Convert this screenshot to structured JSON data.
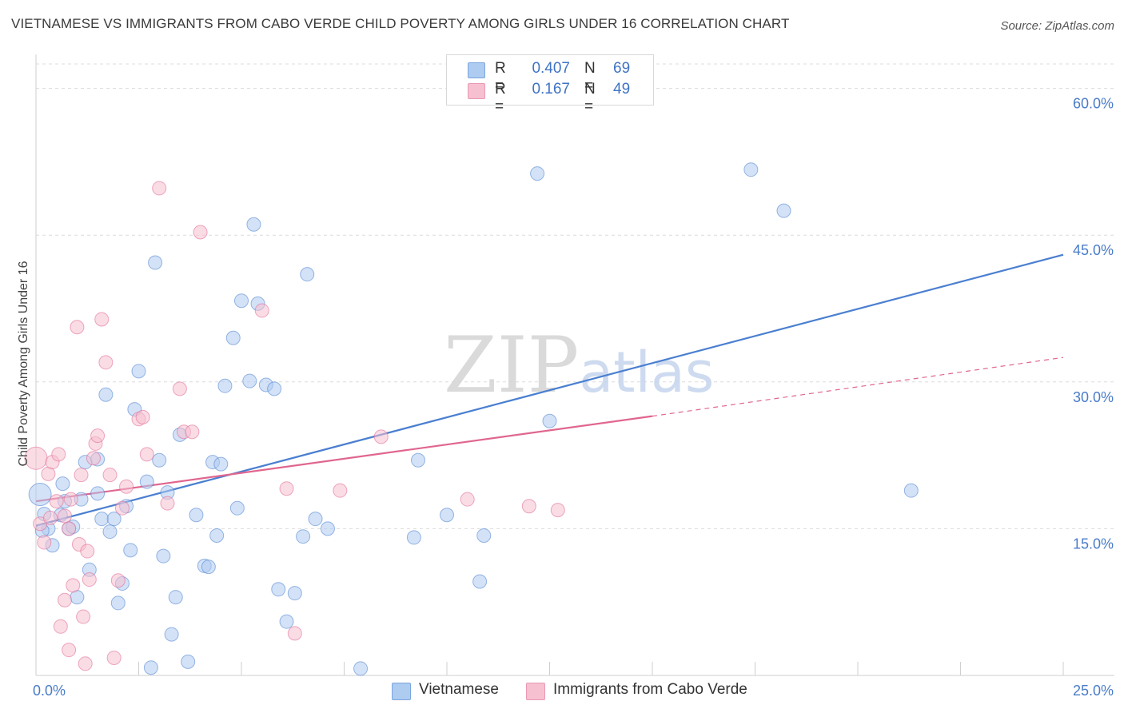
{
  "title": "VIETNAMESE VS IMMIGRANTS FROM CABO VERDE CHILD POVERTY AMONG GIRLS UNDER 16 CORRELATION CHART",
  "source": "Source: ZipAtlas.com",
  "watermark": "ZIPatlas",
  "legend": {
    "rows": [
      {
        "r_label": "R =",
        "r_value": "0.407",
        "n_label": "N =",
        "n_value": "69",
        "color": "#aecbf0"
      },
      {
        "r_label": "R =",
        "r_value": "0.167",
        "n_label": "N =",
        "n_value": "49",
        "color": "#f6c0d0"
      }
    ]
  },
  "bottom_legend": [
    {
      "label": "Vietnamese",
      "color": "#aecbf0"
    },
    {
      "label": "Immigrants from Cabo Verde",
      "color": "#f6c0d0"
    }
  ],
  "chart_data": {
    "type": "scatter",
    "ylabel": "Child Poverty Among Girls Under 16",
    "xlabel": "",
    "xlim": [
      0,
      25
    ],
    "ylim": [
      0,
      60
    ],
    "x_tick_labels": [
      {
        "value": 0,
        "label": "0.0%"
      },
      {
        "value": 25,
        "label": "25.0%"
      }
    ],
    "y_tick_labels": [
      {
        "value": 15,
        "label": "15.0%"
      },
      {
        "value": 30,
        "label": "30.0%"
      },
      {
        "value": 45,
        "label": "45.0%"
      },
      {
        "value": 60,
        "label": "60.0%"
      }
    ],
    "grid": true,
    "series": [
      {
        "name": "Vietnamese",
        "color": "#4a7fd0",
        "fill": "#aecbf0",
        "trend": {
          "x0": 0,
          "y0": 15.3,
          "x1": 25,
          "y1": 43.0,
          "dashed_after": null
        },
        "points": [
          [
            0.1,
            18.5
          ],
          [
            0.2,
            16.5
          ],
          [
            0.3,
            15.0
          ],
          [
            0.4,
            13.3
          ],
          [
            0.6,
            16.4
          ],
          [
            0.65,
            19.6
          ],
          [
            0.7,
            17.8
          ],
          [
            0.8,
            15.0
          ],
          [
            0.9,
            15.2
          ],
          [
            1.0,
            8.0
          ],
          [
            1.1,
            18.0
          ],
          [
            1.2,
            21.8
          ],
          [
            1.3,
            10.8
          ],
          [
            1.5,
            18.6
          ],
          [
            1.6,
            16.0
          ],
          [
            1.7,
            28.7
          ],
          [
            1.8,
            14.7
          ],
          [
            1.9,
            16.0
          ],
          [
            2.0,
            7.4
          ],
          [
            2.1,
            9.4
          ],
          [
            2.2,
            17.3
          ],
          [
            2.3,
            12.8
          ],
          [
            2.4,
            27.2
          ],
          [
            2.5,
            31.1
          ],
          [
            2.7,
            19.8
          ],
          [
            2.8,
            0.8
          ],
          [
            2.9,
            42.2
          ],
          [
            3.0,
            22.0
          ],
          [
            3.1,
            12.2
          ],
          [
            3.2,
            18.7
          ],
          [
            3.3,
            4.2
          ],
          [
            3.4,
            8.0
          ],
          [
            3.5,
            24.6
          ],
          [
            3.7,
            1.4
          ],
          [
            3.9,
            16.4
          ],
          [
            4.1,
            11.2
          ],
          [
            4.2,
            11.1
          ],
          [
            4.3,
            21.8
          ],
          [
            4.4,
            14.3
          ],
          [
            4.5,
            21.6
          ],
          [
            4.6,
            29.6
          ],
          [
            4.8,
            34.5
          ],
          [
            4.9,
            17.1
          ],
          [
            5.0,
            38.3
          ],
          [
            5.2,
            30.1
          ],
          [
            5.3,
            46.1
          ],
          [
            5.4,
            38.0
          ],
          [
            5.6,
            29.7
          ],
          [
            5.8,
            29.3
          ],
          [
            5.9,
            8.8
          ],
          [
            6.1,
            5.5
          ],
          [
            6.3,
            8.4
          ],
          [
            6.5,
            14.2
          ],
          [
            6.6,
            41.0
          ],
          [
            6.8,
            16.0
          ],
          [
            7.1,
            15.0
          ],
          [
            7.9,
            0.7
          ],
          [
            9.3,
            22.0
          ],
          [
            9.2,
            14.1
          ],
          [
            10.0,
            16.4
          ],
          [
            10.8,
            9.6
          ],
          [
            10.9,
            14.3
          ],
          [
            12.2,
            51.3
          ],
          [
            12.5,
            26.0
          ],
          [
            17.4,
            51.7
          ],
          [
            18.2,
            47.5
          ],
          [
            21.3,
            18.9
          ],
          [
            0.15,
            14.8
          ],
          [
            1.5,
            22.1
          ]
        ]
      },
      {
        "name": "Immigrants from Cabo Verde",
        "color": "#e0668f",
        "fill": "#f6c0d0",
        "trend": {
          "x0": 0,
          "y0": 17.8,
          "x1": 15,
          "y1": 26.5,
          "dash_x1": 25,
          "dash_y1": 32.5
        },
        "points": [
          [
            0.0,
            22.2
          ],
          [
            0.1,
            15.5
          ],
          [
            0.2,
            13.6
          ],
          [
            0.3,
            20.6
          ],
          [
            0.4,
            21.8
          ],
          [
            0.5,
            17.8
          ],
          [
            0.55,
            22.6
          ],
          [
            0.6,
            5.0
          ],
          [
            0.7,
            16.3
          ],
          [
            0.7,
            7.7
          ],
          [
            0.8,
            2.6
          ],
          [
            0.85,
            18.0
          ],
          [
            0.9,
            9.2
          ],
          [
            1.0,
            35.6
          ],
          [
            1.05,
            13.4
          ],
          [
            1.1,
            20.5
          ],
          [
            1.15,
            6.0
          ],
          [
            1.2,
            1.2
          ],
          [
            1.25,
            12.7
          ],
          [
            1.3,
            9.8
          ],
          [
            1.4,
            22.2
          ],
          [
            1.45,
            23.7
          ],
          [
            1.5,
            24.5
          ],
          [
            1.6,
            36.4
          ],
          [
            1.7,
            32.0
          ],
          [
            1.8,
            20.5
          ],
          [
            1.9,
            1.8
          ],
          [
            2.0,
            9.7
          ],
          [
            2.1,
            17.1
          ],
          [
            2.2,
            19.3
          ],
          [
            2.5,
            26.2
          ],
          [
            2.6,
            26.4
          ],
          [
            2.7,
            22.6
          ],
          [
            3.0,
            49.8
          ],
          [
            3.2,
            17.6
          ],
          [
            3.5,
            29.3
          ],
          [
            3.6,
            24.9
          ],
          [
            3.8,
            24.9
          ],
          [
            4.0,
            45.3
          ],
          [
            5.5,
            37.3
          ],
          [
            6.1,
            19.1
          ],
          [
            6.3,
            4.3
          ],
          [
            7.4,
            18.9
          ],
          [
            8.4,
            24.4
          ],
          [
            10.5,
            18.0
          ],
          [
            12.0,
            17.3
          ],
          [
            12.7,
            16.9
          ],
          [
            0.8,
            15.0
          ],
          [
            0.35,
            16.1
          ]
        ]
      }
    ]
  }
}
